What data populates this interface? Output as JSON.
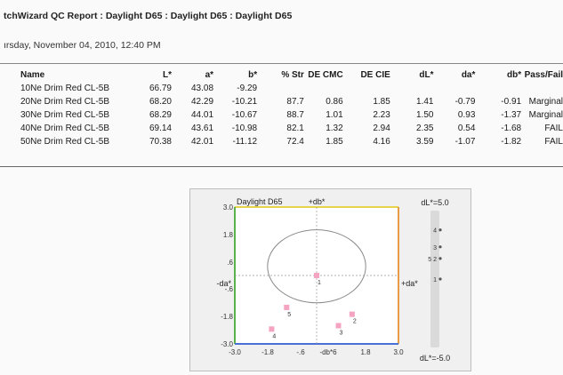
{
  "report": {
    "title": "tchWizard  QC Report : Daylight D65 : Daylight D65 : Daylight D65",
    "date": "ırsday, November 04, 2010, 12:40 PM"
  },
  "table": {
    "headers": [
      "Name",
      "L*",
      "a*",
      "b*",
      "% Str",
      "DE CMC",
      "DE CIE",
      "dL*",
      "da*",
      "db*",
      "Pass/Fail"
    ],
    "rows": [
      [
        "10Ne Drim Red CL-5B",
        "66.79",
        "43.08",
        "-9.29",
        "",
        "",
        "",
        "",
        "",
        "",
        ""
      ],
      [
        "20Ne Drim Red CL-5B",
        "68.20",
        "42.29",
        "-10.21",
        "87.7",
        "0.86",
        "1.85",
        "1.41",
        "-0.79",
        "-0.91",
        "Marginal"
      ],
      [
        "30Ne Drim Red CL-5B",
        "68.29",
        "44.01",
        "-10.67",
        "88.7",
        "1.01",
        "2.23",
        "1.50",
        "0.93",
        "-1.37",
        "Marginal"
      ],
      [
        "40Ne Drim Red CL-5B",
        "69.14",
        "43.61",
        "-10.98",
        "82.1",
        "1.32",
        "2.94",
        "2.35",
        "0.54",
        "-1.68",
        "FAIL"
      ],
      [
        "50Ne Drim Red CL-5B",
        "70.38",
        "42.01",
        "-11.12",
        "72.4",
        "1.85",
        "4.16",
        "3.59",
        "-1.07",
        "-1.82",
        "FAIL"
      ]
    ]
  },
  "chart_data": {
    "type": "scatter",
    "title": "Daylight D65",
    "axes": {
      "x_range": [
        -3.0,
        3.0
      ],
      "y_range": [
        -3.0,
        3.0
      ],
      "x_ticks": [
        "-3.0",
        "-1.8",
        "-.6",
        "-db*6",
        "1.8",
        "3.0"
      ],
      "y_ticks": [
        "3.0",
        "1.8",
        ".6",
        "-.6",
        "-1.8",
        "-3.0"
      ],
      "top_label": "+db*",
      "right_label": "+da*",
      "left_label": "-da*",
      "bottom_label": "-db*"
    },
    "colors": {
      "top": "#e8d44a",
      "right": "#e89b45",
      "left": "#59b34a",
      "bottom": "#4a6fd6",
      "point": "#f4a3c0"
    },
    "tolerance_ellipse": {
      "center": [
        0.0,
        0.4
      ],
      "radii": [
        1.8,
        1.6
      ]
    },
    "points": [
      {
        "label": "1",
        "x": 0.0,
        "y": 0.0
      },
      {
        "label": "2",
        "x": 1.3,
        "y": -1.7
      },
      {
        "label": "3",
        "x": 0.8,
        "y": -2.2
      },
      {
        "label": "4",
        "x": -1.65,
        "y": -2.35
      },
      {
        "label": "5",
        "x": -1.1,
        "y": -1.4
      }
    ],
    "dl_scale": {
      "top_label": "dL*=5.0",
      "bottom_label": "dL*=-5.0",
      "range": [
        -5.0,
        5.0
      ],
      "points": [
        {
          "labels": "4",
          "value": 3.59
        },
        {
          "labels": "3",
          "value": 2.35
        },
        {
          "labels": "5 2",
          "value": 1.5
        },
        {
          "labels": "1",
          "value": 0.0
        }
      ]
    }
  }
}
